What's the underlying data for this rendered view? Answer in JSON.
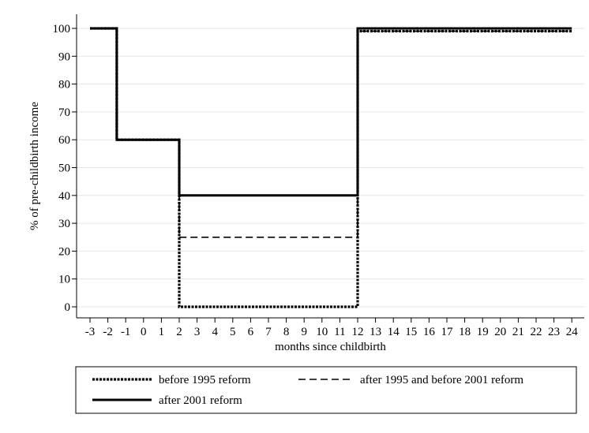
{
  "chart_data": {
    "type": "line",
    "line_shape": "step",
    "xlabel": "months since childbirth",
    "ylabel": "% of pre-childbirth income",
    "xlim": [
      -3,
      24
    ],
    "ylim": [
      0,
      100
    ],
    "x_ticks": [
      "-3",
      "-2",
      "-1",
      "0",
      "1",
      "2",
      "3",
      "4",
      "5",
      "6",
      "7",
      "8",
      "9",
      "10",
      "11",
      "12",
      "13",
      "14",
      "15",
      "16",
      "17",
      "18",
      "19",
      "20",
      "21",
      "22",
      "23",
      "24"
    ],
    "y_ticks": [
      "0",
      "10",
      "20",
      "30",
      "40",
      "50",
      "60",
      "70",
      "80",
      "90",
      "100"
    ],
    "grid": "horizontal",
    "legend_position": "bottom",
    "series": [
      {
        "name": "before 1995 reform",
        "style": "dotted",
        "points": [
          [
            -3,
            100
          ],
          [
            -1.5,
            100
          ],
          [
            -1.5,
            60
          ],
          [
            2,
            60
          ],
          [
            2,
            0
          ],
          [
            12,
            0
          ],
          [
            12,
            99
          ],
          [
            24,
            99
          ]
        ]
      },
      {
        "name": "after 1995 and before 2001 reform",
        "style": "dashed",
        "points": [
          [
            -3,
            100
          ],
          [
            -1.5,
            100
          ],
          [
            -1.5,
            60
          ],
          [
            2,
            60
          ],
          [
            2,
            25
          ],
          [
            12,
            25
          ],
          [
            12,
            99
          ],
          [
            24,
            99
          ]
        ]
      },
      {
        "name": "after 2001 reform",
        "style": "solid",
        "points": [
          [
            -3,
            100
          ],
          [
            -1.5,
            100
          ],
          [
            -1.5,
            60
          ],
          [
            2,
            60
          ],
          [
            2,
            40
          ],
          [
            12,
            40
          ],
          [
            12,
            100
          ],
          [
            24,
            100
          ]
        ]
      }
    ],
    "colors": {
      "line": "#000000",
      "grid": "#e6e6e6",
      "axis": "#000000"
    }
  }
}
